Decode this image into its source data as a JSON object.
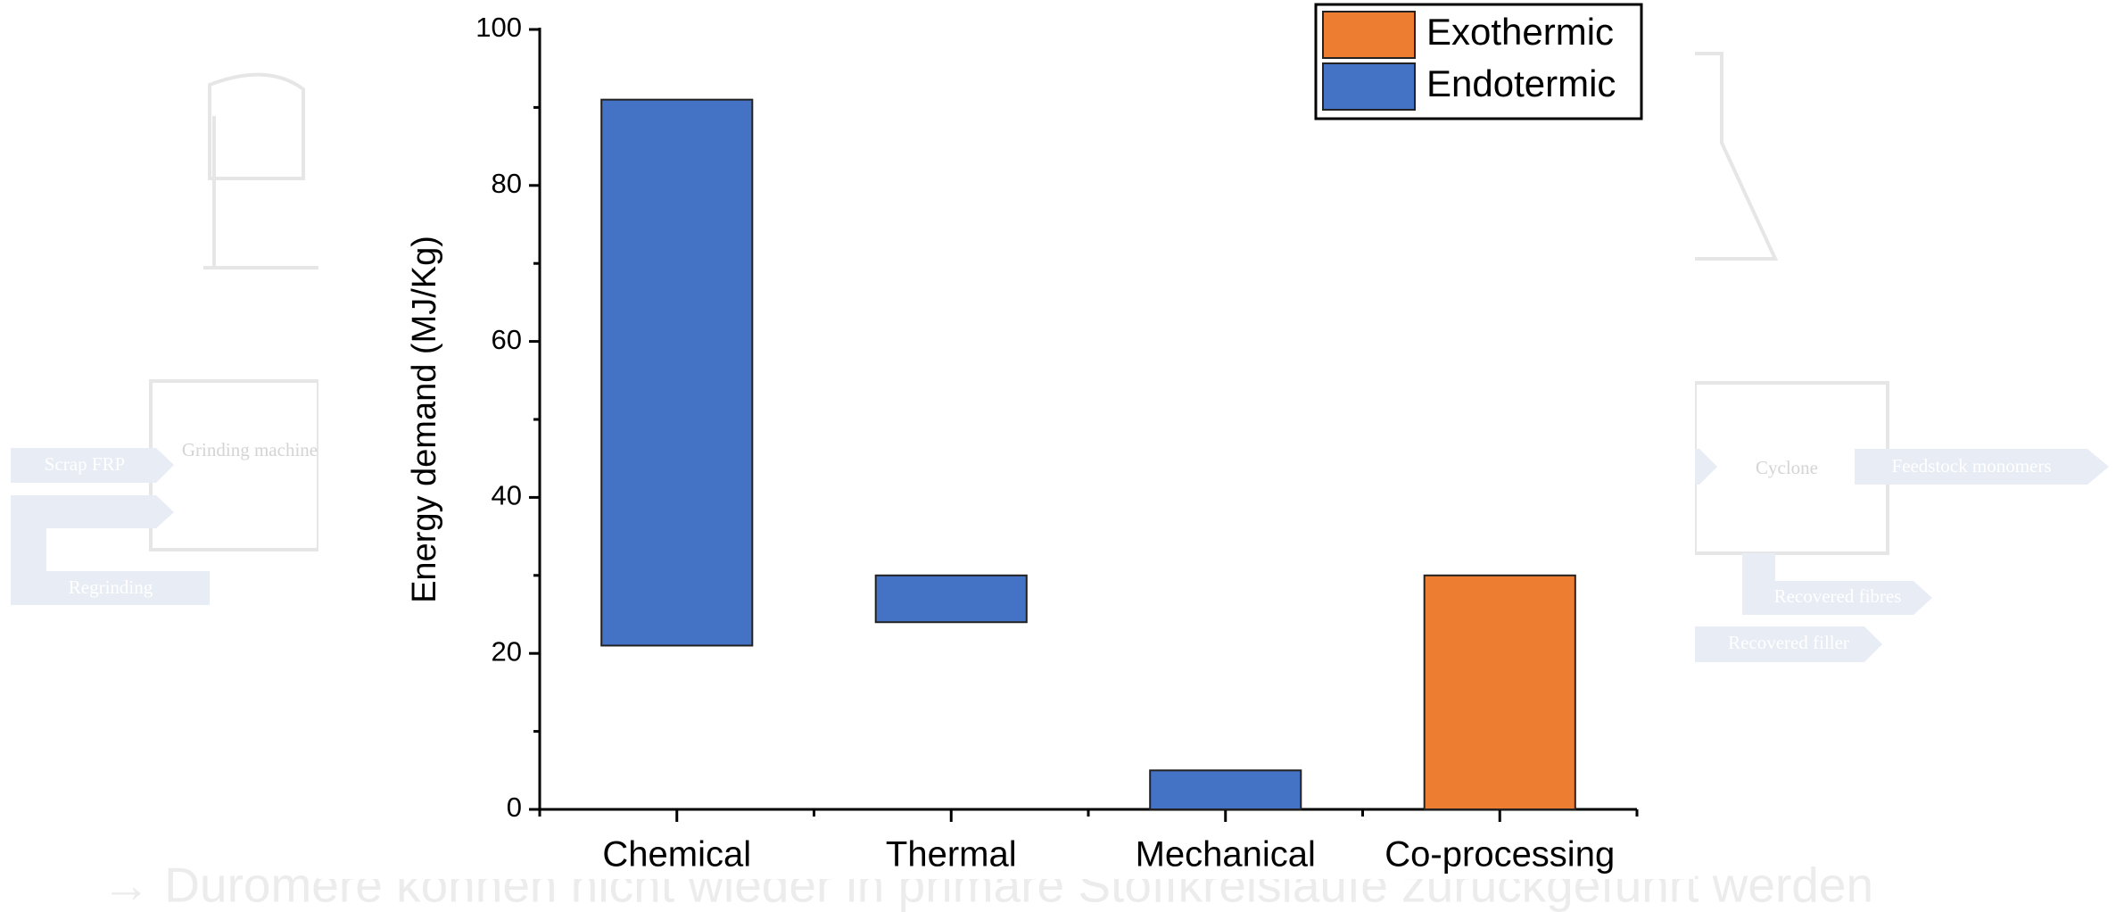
{
  "background": {
    "labels": [
      "Scrap FRP",
      "Grinding machine",
      "Regrinding",
      "Cyclone",
      "Feedstock monomers",
      "Recovered fibres",
      "Recovered filler"
    ],
    "footer": "→ Duromere können nicht wieder in primäre Stoffkreisläufe zurückgeführt werden"
  },
  "chart_data": {
    "type": "range_bar",
    "y_label": "Energy demand (MJ/Kg)",
    "categories": [
      "Chemical",
      "Thermal",
      "Mechanical",
      "Co-processing"
    ],
    "series": [
      {
        "name": "Exothermic",
        "color": "#ed7d31",
        "low": [
          null,
          null,
          null,
          0
        ],
        "high": [
          null,
          null,
          null,
          30
        ]
      },
      {
        "name": "Endotermic",
        "color": "#4472c4",
        "low": [
          21,
          24,
          0,
          null
        ],
        "high": [
          91,
          30,
          5,
          null
        ]
      }
    ],
    "ylim": [
      0,
      100
    ],
    "yticks": [
      0,
      20,
      40,
      60,
      80,
      100
    ],
    "yminorticks": [
      10,
      30,
      50,
      70,
      90
    ],
    "legend": "upper right"
  }
}
